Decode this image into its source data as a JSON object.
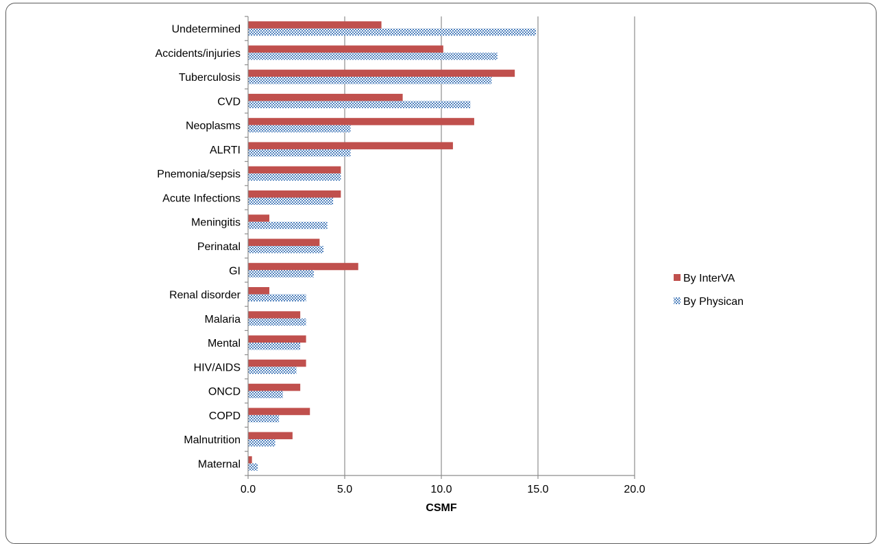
{
  "chart_data": {
    "type": "bar",
    "orientation": "horizontal",
    "title": "",
    "xlabel": "CSMF",
    "ylabel": "",
    "xlim": [
      0,
      20
    ],
    "xticks": [
      0,
      5,
      10,
      15,
      20
    ],
    "xtick_labels": [
      "0.0",
      "5.0",
      "10.0",
      "15.0",
      "20.0"
    ],
    "grid": true,
    "legend_position": "right",
    "categories": [
      "Undetermined",
      "Accidents/injuries",
      "Tuberculosis",
      "CVD",
      "Neoplasms",
      "ALRTI",
      "Pnemonia/sepsis",
      "Acute Infections",
      "Meningitis",
      "Perinatal",
      "GI",
      "Renal disorder",
      "Malaria",
      "Mental",
      "HIV/AIDS",
      "ONCD",
      "COPD",
      "Malnutrition",
      "Maternal"
    ],
    "series": [
      {
        "name": "By InterVA",
        "color": "#c0504d",
        "pattern": "solid",
        "values": [
          6.9,
          10.1,
          13.8,
          8.0,
          11.7,
          10.6,
          4.8,
          4.8,
          1.1,
          3.7,
          5.7,
          1.1,
          2.7,
          3.0,
          3.0,
          2.7,
          3.2,
          2.3,
          0.2
        ]
      },
      {
        "name": "By Physican",
        "color": "#4f81bd",
        "pattern": "checker",
        "values": [
          14.9,
          12.9,
          12.6,
          11.5,
          5.3,
          5.3,
          4.8,
          4.4,
          4.1,
          3.9,
          3.4,
          3.0,
          3.0,
          2.7,
          2.5,
          1.8,
          1.6,
          1.4,
          0.5
        ]
      }
    ]
  }
}
